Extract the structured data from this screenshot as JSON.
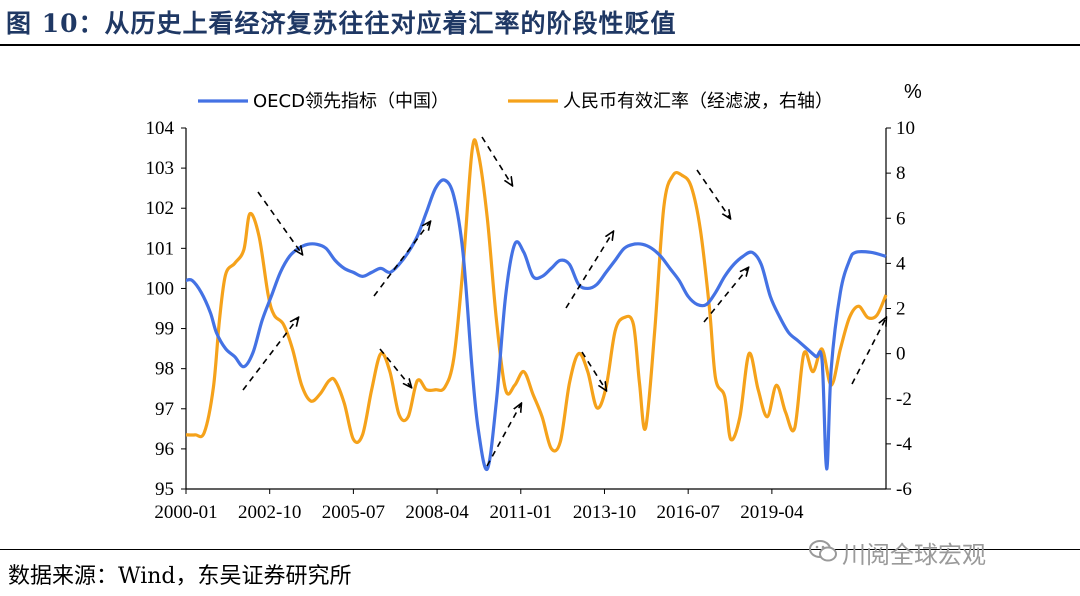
{
  "header": {
    "title": "图 10：从历史上看经济复苏往往对应着汇率的阶段性贬值"
  },
  "footer": {
    "source": "数据来源：Wind，东吴证券研究所",
    "watermark": "川阅全球宏观",
    "watermark_icon": "wechat-icon"
  },
  "chart_data": {
    "type": "line",
    "title": "",
    "xlabel": "",
    "x_ticks": [
      "2000-01",
      "2002-10",
      "2005-07",
      "2008-04",
      "2011-01",
      "2013-10",
      "2016-07",
      "2019-04"
    ],
    "x_range": [
      2000.0,
      2022.0
    ],
    "left_axis": {
      "ylim": [
        95,
        104
      ],
      "ticks": [
        95,
        96,
        97,
        98,
        99,
        100,
        101,
        102,
        103,
        104
      ]
    },
    "right_axis": {
      "ylim": [
        -6,
        10
      ],
      "ticks": [
        -6,
        -4,
        -2,
        0,
        2,
        4,
        6,
        8,
        10
      ],
      "unit": "%"
    },
    "legend_position": "top",
    "series": [
      {
        "name": "OECD领先指标（中国）",
        "axis": "left",
        "color": "#4472e4",
        "points": [
          [
            2000.0,
            100.2
          ],
          [
            2000.2,
            100.2
          ],
          [
            2000.5,
            99.9
          ],
          [
            2000.8,
            99.4
          ],
          [
            2001.0,
            98.9
          ],
          [
            2001.3,
            98.5
          ],
          [
            2001.6,
            98.3
          ],
          [
            2001.9,
            98.05
          ],
          [
            2002.2,
            98.4
          ],
          [
            2002.5,
            99.2
          ],
          [
            2002.8,
            99.8
          ],
          [
            2003.1,
            100.4
          ],
          [
            2003.4,
            100.8
          ],
          [
            2003.7,
            101.0
          ],
          [
            2004.0,
            101.1
          ],
          [
            2004.3,
            101.1
          ],
          [
            2004.6,
            101.0
          ],
          [
            2004.9,
            100.7
          ],
          [
            2005.2,
            100.5
          ],
          [
            2005.5,
            100.4
          ],
          [
            2005.8,
            100.3
          ],
          [
            2006.1,
            100.4
          ],
          [
            2006.4,
            100.5
          ],
          [
            2006.7,
            100.4
          ],
          [
            2007.0,
            100.6
          ],
          [
            2007.3,
            100.9
          ],
          [
            2007.6,
            101.3
          ],
          [
            2007.9,
            101.9
          ],
          [
            2008.2,
            102.5
          ],
          [
            2008.5,
            102.7
          ],
          [
            2008.8,
            102.3
          ],
          [
            2009.1,
            100.9
          ],
          [
            2009.4,
            98.0
          ],
          [
            2009.6,
            96.5
          ],
          [
            2009.9,
            95.5
          ],
          [
            2010.2,
            97.2
          ],
          [
            2010.5,
            99.8
          ],
          [
            2010.8,
            101.1
          ],
          [
            2011.1,
            100.9
          ],
          [
            2011.4,
            100.3
          ],
          [
            2011.7,
            100.3
          ],
          [
            2012.0,
            100.5
          ],
          [
            2012.3,
            100.7
          ],
          [
            2012.6,
            100.6
          ],
          [
            2012.9,
            100.1
          ],
          [
            2013.2,
            100.0
          ],
          [
            2013.5,
            100.1
          ],
          [
            2013.8,
            100.4
          ],
          [
            2014.1,
            100.7
          ],
          [
            2014.4,
            101.0
          ],
          [
            2014.7,
            101.1
          ],
          [
            2015.0,
            101.1
          ],
          [
            2015.3,
            101.0
          ],
          [
            2015.6,
            100.8
          ],
          [
            2015.9,
            100.5
          ],
          [
            2016.2,
            100.2
          ],
          [
            2016.5,
            99.8
          ],
          [
            2016.8,
            99.6
          ],
          [
            2017.1,
            99.6
          ],
          [
            2017.4,
            99.9
          ],
          [
            2017.7,
            100.3
          ],
          [
            2018.0,
            100.6
          ],
          [
            2018.3,
            100.8
          ],
          [
            2018.6,
            100.9
          ],
          [
            2018.9,
            100.6
          ],
          [
            2019.2,
            99.8
          ],
          [
            2019.5,
            99.3
          ],
          [
            2019.8,
            98.9
          ],
          [
            2020.1,
            98.7
          ],
          [
            2020.4,
            98.5
          ],
          [
            2020.7,
            98.3
          ],
          [
            2020.9,
            98.2
          ],
          [
            2021.05,
            95.5
          ],
          [
            2021.2,
            98.0
          ],
          [
            2021.5,
            99.9
          ],
          [
            2021.8,
            100.7
          ],
          [
            2022.0,
            100.9
          ],
          [
            2022.5,
            100.9
          ],
          [
            2023.0,
            100.8
          ]
        ]
      },
      {
        "name": "人民币有效汇率（经滤波，右轴）",
        "axis": "right",
        "color": "#f5a21b",
        "points": [
          [
            2000.0,
            -3.6
          ],
          [
            2000.3,
            -3.6
          ],
          [
            2000.6,
            -3.5
          ],
          [
            2000.9,
            -1.5
          ],
          [
            2001.1,
            1.5
          ],
          [
            2001.3,
            3.5
          ],
          [
            2001.6,
            4.0
          ],
          [
            2001.9,
            4.6
          ],
          [
            2002.1,
            6.2
          ],
          [
            2002.4,
            5.2
          ],
          [
            2002.7,
            2.6
          ],
          [
            2002.9,
            1.7
          ],
          [
            2003.2,
            1.3
          ],
          [
            2003.5,
            0.2
          ],
          [
            2003.8,
            -1.4
          ],
          [
            2004.1,
            -2.1
          ],
          [
            2004.4,
            -1.8
          ],
          [
            2004.7,
            -1.2
          ],
          [
            2004.9,
            -1.2
          ],
          [
            2005.2,
            -2.2
          ],
          [
            2005.5,
            -3.8
          ],
          [
            2005.8,
            -3.6
          ],
          [
            2006.1,
            -1.6
          ],
          [
            2006.4,
            0.0
          ],
          [
            2006.7,
            -0.8
          ],
          [
            2007.0,
            -2.7
          ],
          [
            2007.3,
            -2.8
          ],
          [
            2007.6,
            -1.2
          ],
          [
            2007.9,
            -1.6
          ],
          [
            2008.2,
            -1.6
          ],
          [
            2008.5,
            -1.5
          ],
          [
            2008.8,
            -0.2
          ],
          [
            2009.1,
            3.8
          ],
          [
            2009.4,
            9.0
          ],
          [
            2009.6,
            8.9
          ],
          [
            2009.9,
            6.0
          ],
          [
            2010.2,
            1.5
          ],
          [
            2010.5,
            -1.6
          ],
          [
            2010.8,
            -1.4
          ],
          [
            2011.1,
            -0.8
          ],
          [
            2011.4,
            -1.8
          ],
          [
            2011.7,
            -2.8
          ],
          [
            2012.0,
            -4.2
          ],
          [
            2012.3,
            -3.9
          ],
          [
            2012.6,
            -1.3
          ],
          [
            2012.9,
            0.0
          ],
          [
            2013.2,
            -0.8
          ],
          [
            2013.5,
            -2.4
          ],
          [
            2013.8,
            -1.5
          ],
          [
            2014.1,
            1.0
          ],
          [
            2014.4,
            1.6
          ],
          [
            2014.7,
            1.3
          ],
          [
            2014.9,
            -1.3
          ],
          [
            2015.1,
            -3.3
          ],
          [
            2015.4,
            1.0
          ],
          [
            2015.7,
            6.5
          ],
          [
            2016.0,
            7.9
          ],
          [
            2016.3,
            7.9
          ],
          [
            2016.6,
            7.4
          ],
          [
            2016.9,
            5.5
          ],
          [
            2017.2,
            2.0
          ],
          [
            2017.4,
            -1.1
          ],
          [
            2017.7,
            -1.9
          ],
          [
            2017.9,
            -3.8
          ],
          [
            2018.2,
            -2.8
          ],
          [
            2018.5,
            0.0
          ],
          [
            2018.8,
            -1.6
          ],
          [
            2019.1,
            -2.8
          ],
          [
            2019.4,
            -1.4
          ],
          [
            2019.7,
            -2.6
          ],
          [
            2020.0,
            -3.3
          ],
          [
            2020.3,
            0.0
          ],
          [
            2020.6,
            -0.8
          ],
          [
            2020.9,
            0.2
          ],
          [
            2021.2,
            -1.4
          ],
          [
            2021.5,
            0.2
          ],
          [
            2021.8,
            1.6
          ],
          [
            2022.1,
            2.1
          ],
          [
            2022.4,
            1.6
          ],
          [
            2022.7,
            1.7
          ],
          [
            2023.0,
            2.6
          ]
        ]
      }
    ],
    "annotations": "dashed arrows marking recovery of OECD indicator and depreciation of exchange rate"
  }
}
